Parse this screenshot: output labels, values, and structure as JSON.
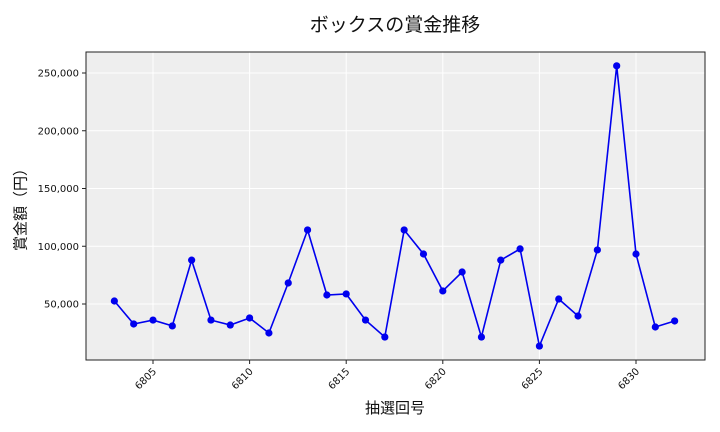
{
  "chart_data": {
    "type": "line",
    "title": "ボックスの賞金推移",
    "xlabel": "抽選回号",
    "ylabel": "賞金額（円）",
    "x": [
      6803,
      6804,
      6805,
      6806,
      6807,
      6808,
      6809,
      6810,
      6811,
      6812,
      6813,
      6814,
      6815,
      6816,
      6817,
      6818,
      6819,
      6820,
      6821,
      6822,
      6823,
      6824,
      6825,
      6826,
      6827,
      6828,
      6829,
      6830,
      6831,
      6832
    ],
    "series": [
      {
        "name": "ボックス",
        "color": "#0000ee",
        "values": [
          52600,
          32700,
          36100,
          31000,
          88000,
          36100,
          31800,
          37900,
          24900,
          68200,
          114100,
          57800,
          58700,
          36100,
          21400,
          114100,
          93300,
          61300,
          77700,
          21400,
          88000,
          97700,
          13600,
          54300,
          39600,
          96800,
          256200,
          93300,
          30100,
          35300
        ]
      }
    ],
    "x_ticks": [
      6805,
      6810,
      6815,
      6820,
      6825,
      6830
    ],
    "x_tick_labels": [
      "6805",
      "6810",
      "6815",
      "6820",
      "6825",
      "6830"
    ],
    "y_ticks": [
      50000,
      100000,
      150000,
      200000,
      250000
    ],
    "y_tick_labels": [
      "50,000",
      "100,000",
      "150,000",
      "200,000",
      "250,000"
    ],
    "xlim": [
      6801,
      6833.1
    ],
    "ylim": [
      1100,
      268000
    ],
    "grid": true,
    "background": "#eeeeee",
    "legend": null
  }
}
